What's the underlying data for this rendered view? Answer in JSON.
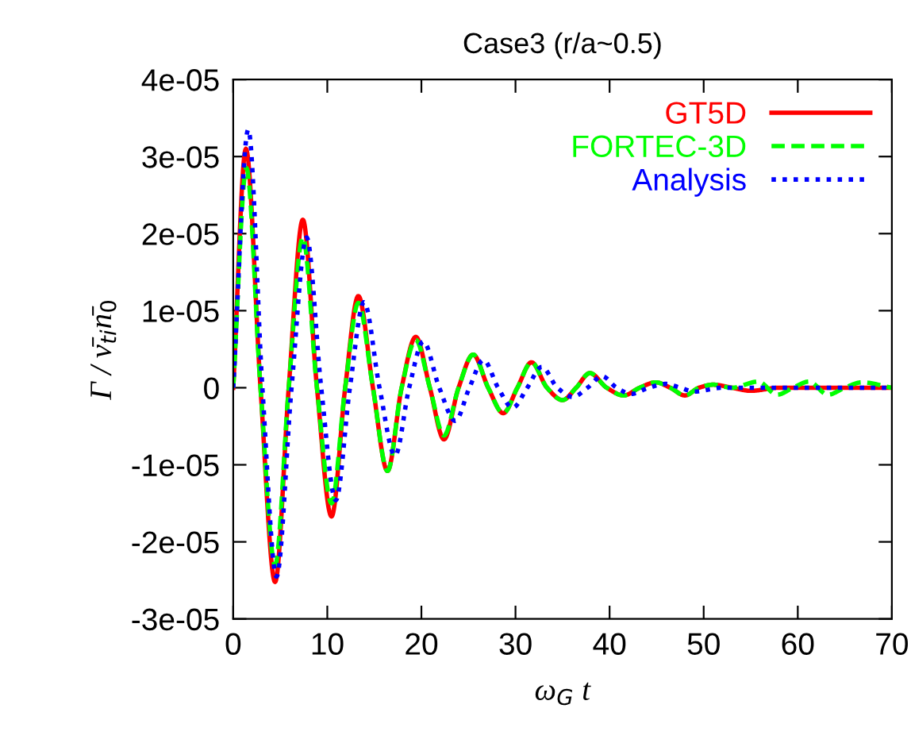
{
  "chart_data": {
    "type": "line",
    "title": "Case3 (r/a~0.5)",
    "xlabel": "ω$_{G}$ t",
    "ylabel": "Γ / v̄$_{ti}$n̄$_{0}$",
    "xlim": [
      0,
      70
    ],
    "xticks": [
      0,
      10,
      20,
      30,
      40,
      50,
      60,
      70
    ],
    "ylim": [
      -3e-05,
      4e-05
    ],
    "yticks": [
      {
        "value": -3e-05,
        "label": "-3e-05"
      },
      {
        "value": -2e-05,
        "label": "-2e-05"
      },
      {
        "value": -1e-05,
        "label": "-1e-05"
      },
      0,
      {
        "value": 1e-05,
        "label": "1e-05"
      },
      {
        "value": 2e-05,
        "label": "2e-05"
      },
      {
        "value": 3e-05,
        "label": "3e-05"
      },
      {
        "value": 4e-05,
        "label": "4e-05"
      }
    ],
    "grid": false,
    "legend": "top right",
    "marker": "none",
    "series": [
      {
        "name": "GT5D",
        "color": "#ff0000",
        "line_style": "solid",
        "x": [
          0,
          1.35,
          2.9,
          4.45,
          5.9,
          7.4,
          8.9,
          10.45,
          11.9,
          13.3,
          14.85,
          16.4,
          17.9,
          19.4,
          20.9,
          22.4,
          23.95,
          25.5,
          27.1,
          28.7,
          30.2,
          31.7,
          33.35,
          35,
          36.45,
          37.9,
          39.7,
          41.5,
          43.2,
          44.9,
          46.45,
          48,
          49.5,
          51,
          53,
          55,
          58,
          70
        ],
        "values": [
          0,
          3.1e-05,
          0,
          -2.52e-05,
          0,
          2.18e-05,
          0,
          -1.67e-05,
          0,
          1.19e-05,
          0,
          -1.08e-05,
          0,
          6.6e-06,
          0,
          -6.7e-06,
          0,
          4.3e-06,
          0,
          -3.3e-06,
          0,
          3.3e-06,
          0,
          -1.6e-06,
          0,
          1.9e-06,
          0,
          -1e-06,
          0,
          7e-07,
          0,
          -1e-06,
          0,
          4e-07,
          0,
          -4e-07,
          0,
          0
        ]
      },
      {
        "name": "FORTEC-3D",
        "color": "#00ff00",
        "line_style": "dashed",
        "x": [
          0,
          1.4,
          2.9,
          4.45,
          5.9,
          7.4,
          8.9,
          10.45,
          11.9,
          13.3,
          14.85,
          16.4,
          17.9,
          19.4,
          20.9,
          22.4,
          23.95,
          25.5,
          27.1,
          28.7,
          30.2,
          31.7,
          33.35,
          35,
          36.45,
          37.9,
          39.7,
          41.5,
          43.2,
          44.9,
          46.45,
          48,
          49.5,
          51,
          53,
          55.8,
          57.8,
          59.5,
          61.2,
          63.2,
          65,
          66.8,
          70
        ],
        "values": [
          0,
          2.85e-05,
          0,
          -2.3e-05,
          0,
          1.95e-05,
          0,
          -1.5e-05,
          0,
          1.1e-05,
          0,
          -1.08e-05,
          0,
          6.2e-06,
          0,
          -6.2e-06,
          0,
          4.3e-06,
          0,
          -3.3e-06,
          0,
          3.3e-06,
          0,
          -1.6e-06,
          0,
          1.9e-06,
          0,
          -1e-06,
          0,
          7e-07,
          0,
          -1e-06,
          0,
          4e-07,
          0,
          8e-07,
          -9e-07,
          0,
          8e-07,
          -9e-07,
          0,
          7e-07,
          0
        ]
      },
      {
        "name": "Analysis",
        "color": "#0000ff",
        "line_style": "dotted",
        "x": [
          0,
          1.6,
          3.1,
          4.6,
          6.2,
          7.8,
          9.35,
          10.9,
          12.4,
          13.9,
          15.55,
          17.2,
          18.7,
          20.2,
          21.9,
          23.6,
          25.1,
          26.6,
          28.15,
          29.7,
          31.25,
          32.8,
          34.45,
          36.1,
          37.65,
          39.2,
          40.75,
          42.3,
          44.15,
          46,
          47.5,
          49,
          52,
          70
        ],
        "values": [
          0,
          3.35e-05,
          0,
          -2.45e-05,
          0,
          1.95e-05,
          0,
          -1.46e-05,
          0,
          1.11e-05,
          0,
          -8.8e-06,
          0,
          6e-06,
          0,
          -4.3e-06,
          0,
          3.6e-06,
          0,
          -2.6e-06,
          0,
          2.7e-06,
          0,
          -1.2e-06,
          0,
          1.5e-06,
          0,
          -8e-07,
          0,
          5e-07,
          0,
          -5e-07,
          0,
          0
        ]
      }
    ]
  }
}
